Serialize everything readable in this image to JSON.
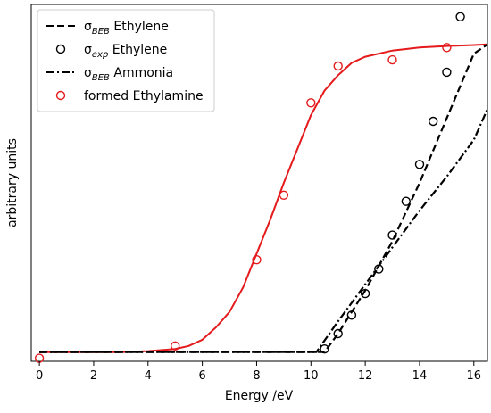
{
  "chart_data": {
    "type": "line",
    "xlabel": "Energy /eV",
    "ylabel": "arbitrary units",
    "xlim": [
      -0.3,
      16.5
    ],
    "ylim": [
      -0.03,
      1.13
    ],
    "xticks": [
      0,
      2,
      4,
      6,
      8,
      10,
      12,
      14,
      16
    ],
    "yticks_visible": false,
    "grid": false,
    "legend_position": "top-left",
    "series": [
      {
        "name": "BEB Ethylene",
        "symbol": "σ",
        "subscript": "BEB",
        "suffix": " Ethylene",
        "kind": "line",
        "dash": "dashed",
        "color": "#000000",
        "x": [
          0,
          10.5,
          11,
          12,
          13,
          14,
          15,
          16,
          16.5
        ],
        "y": [
          0.0,
          0.0,
          0.06,
          0.2,
          0.36,
          0.55,
          0.76,
          0.97,
          1.0
        ]
      },
      {
        "name": "exp Ethylene",
        "symbol": "σ",
        "subscript": "exp",
        "suffix": " Ethylene",
        "kind": "marker",
        "color": "#000000",
        "x": [
          10.5,
          11,
          11.5,
          12,
          12.5,
          13,
          13.5,
          14,
          14.5,
          15,
          15.5
        ],
        "y": [
          0.01,
          0.06,
          0.12,
          0.19,
          0.27,
          0.38,
          0.49,
          0.61,
          0.75,
          0.91,
          1.09
        ]
      },
      {
        "name": "BEB Ammonia",
        "symbol": "σ",
        "subscript": "BEB",
        "suffix": " Ammonia",
        "kind": "line",
        "dash": "dashdot",
        "color": "#000000",
        "x": [
          0,
          10.2,
          11,
          12,
          13,
          14,
          15,
          16,
          16.5
        ],
        "y": [
          0.0,
          0.0,
          0.1,
          0.22,
          0.34,
          0.46,
          0.57,
          0.69,
          0.79
        ]
      },
      {
        "name": "formed Ethylamine",
        "label": "formed Ethylamine",
        "kind": "marker",
        "color": "#e41a1c",
        "x": [
          0,
          5,
          8,
          9,
          10,
          11,
          13,
          15
        ],
        "y": [
          -0.02,
          0.02,
          0.3,
          0.51,
          0.81,
          0.93,
          0.95,
          0.99
        ]
      },
      {
        "name": "formed Ethylamine fit",
        "kind": "fit",
        "color": "#e41a1c",
        "x": [
          0,
          1,
          2,
          3,
          4,
          5,
          5.5,
          6,
          6.5,
          7,
          7.5,
          8,
          8.5,
          9,
          9.5,
          10,
          10.5,
          11,
          11.5,
          12,
          13,
          14,
          15,
          16,
          16.5
        ],
        "y": [
          0.0,
          0.0,
          0.0,
          0.0,
          0.003,
          0.01,
          0.02,
          0.04,
          0.08,
          0.13,
          0.21,
          0.32,
          0.43,
          0.55,
          0.66,
          0.77,
          0.85,
          0.9,
          0.94,
          0.96,
          0.98,
          0.99,
          0.995,
          0.998,
          1.0
        ]
      }
    ]
  }
}
